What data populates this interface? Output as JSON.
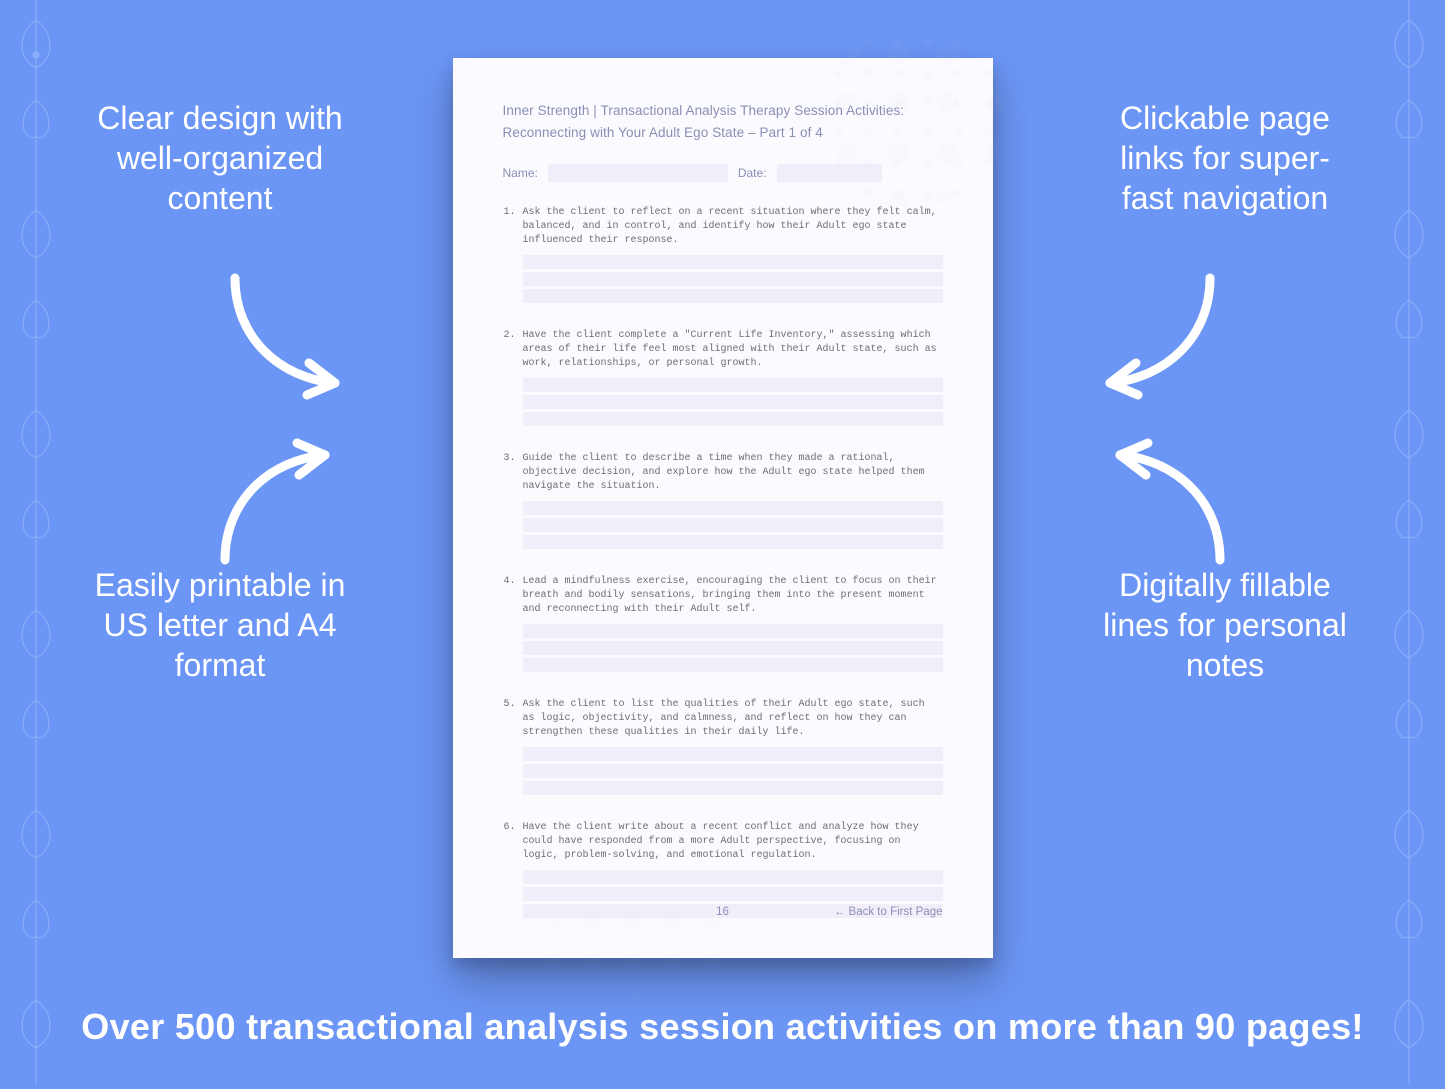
{
  "colors": {
    "background": "#6c96f5",
    "callout_text": "#ffffff",
    "page_bg": "#fbfaff",
    "doc_text": "#8a8fb5",
    "item_text": "#6d6d78",
    "fill_line": "#f1edf9",
    "border_deco": "#c5d7ff"
  },
  "typography": {
    "callout_fontsize": 32,
    "callout_lineheight": 40,
    "banner_fontsize": 36,
    "banner_weight": 700,
    "doc_title_fontsize": 13.5,
    "item_fontsize": 10,
    "item_font": "monospace"
  },
  "callouts": {
    "top_left": "Clear design with well-organized content",
    "top_right": "Clickable page links for super-fast navigation",
    "bottom_left": "Easily printable in US letter and A4 format",
    "bottom_right": "Digitally fillable lines for personal notes"
  },
  "bottom_banner": "Over 500 transactional analysis session activities on more than 90 pages!",
  "document": {
    "title_line1": "Inner Strength | Transactional Analysis Therapy Session Activities:",
    "title_line2": "Reconnecting with Your Adult Ego State  – Part 1 of 4",
    "name_label": "Name:",
    "date_label": "Date:",
    "page_number": "16",
    "back_link": "← Back to First Page",
    "fill_lines_per_item": 3,
    "items": [
      {
        "num": "1.",
        "text": "Ask the client to reflect on a recent situation where they felt calm, balanced, and in control, and identify how their Adult ego state influenced their response."
      },
      {
        "num": "2.",
        "text": "Have the client complete a \"Current Life Inventory,\" assessing which areas of their life feel most aligned with their Adult state, such as work, relationships, or personal growth."
      },
      {
        "num": "3.",
        "text": "Guide the client to describe a time when they made a rational, objective decision, and explore how the Adult ego state helped them navigate the situation."
      },
      {
        "num": "4.",
        "text": "Lead a mindfulness exercise, encouraging the client to focus on their breath and bodily sensations, bringing them into the present moment and reconnecting with their Adult self."
      },
      {
        "num": "5.",
        "text": "Ask the client to list the qualities of their Adult ego state, such as logic, objectivity, and calmness, and reflect on how they can strengthen these qualities in their daily life."
      },
      {
        "num": "6.",
        "text": "Have the client write about a recent conflict and analyze how they could have responded from a more Adult perspective, focusing on logic, problem-solving, and emotional regulation."
      }
    ]
  }
}
